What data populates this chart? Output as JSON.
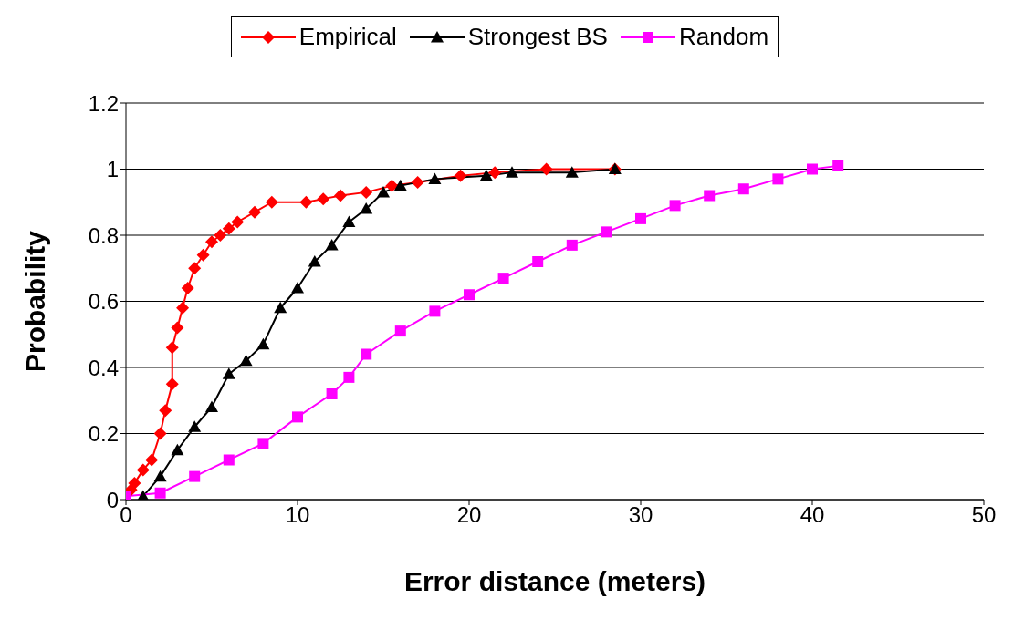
{
  "chart_data": {
    "type": "line",
    "xlabel": "Error distance (meters)",
    "ylabel": "Probability",
    "xlim": [
      0,
      50
    ],
    "xticks": [
      0,
      10,
      20,
      30,
      40,
      50
    ],
    "ylim": [
      0,
      1.2
    ],
    "yticks": [
      0,
      0.2,
      0.4,
      0.6,
      0.8,
      1,
      1.2
    ],
    "grid": "y",
    "legend": "top",
    "series": [
      {
        "name": "Empirical",
        "color": "#ff0000",
        "marker": "diamond",
        "x": [
          0.3,
          0.5,
          1,
          1.5,
          2,
          2.3,
          2.7,
          2.7,
          3,
          3.3,
          3.6,
          4,
          4.5,
          5,
          5.5,
          6,
          6.5,
          7.5,
          8.5,
          10.5,
          11.5,
          12.5,
          14,
          15.5,
          17,
          19.5,
          21.5,
          24.5,
          28.5
        ],
        "values": [
          0.03,
          0.05,
          0.09,
          0.12,
          0.2,
          0.27,
          0.35,
          0.46,
          0.52,
          0.58,
          0.64,
          0.7,
          0.74,
          0.78,
          0.8,
          0.82,
          0.84,
          0.87,
          0.9,
          0.9,
          0.91,
          0.92,
          0.93,
          0.95,
          0.96,
          0.98,
          0.99,
          1,
          1
        ]
      },
      {
        "name": "Strongest BS",
        "color": "#000000",
        "marker": "triangle",
        "x": [
          1,
          2,
          3,
          4,
          5,
          6,
          7,
          8,
          9,
          10,
          11,
          12,
          13,
          14,
          15,
          16,
          18,
          21,
          22.5,
          26,
          28.5
        ],
        "values": [
          0.01,
          0.07,
          0.15,
          0.22,
          0.28,
          0.38,
          0.42,
          0.47,
          0.58,
          0.64,
          0.72,
          0.77,
          0.84,
          0.88,
          0.93,
          0.95,
          0.97,
          0.98,
          0.99,
          0.99,
          1
        ]
      },
      {
        "name": "Random",
        "color": "#ff00ff",
        "marker": "square",
        "x": [
          0,
          2,
          4,
          6,
          8,
          10,
          12,
          13,
          14,
          16,
          18,
          20,
          22,
          24,
          26,
          28,
          30,
          32,
          34,
          36,
          38,
          40,
          41.5
        ],
        "values": [
          0.01,
          0.02,
          0.07,
          0.12,
          0.17,
          0.25,
          0.32,
          0.37,
          0.44,
          0.51,
          0.57,
          0.62,
          0.67,
          0.72,
          0.77,
          0.81,
          0.85,
          0.89,
          0.92,
          0.94,
          0.97,
          1,
          1.01
        ]
      }
    ]
  }
}
